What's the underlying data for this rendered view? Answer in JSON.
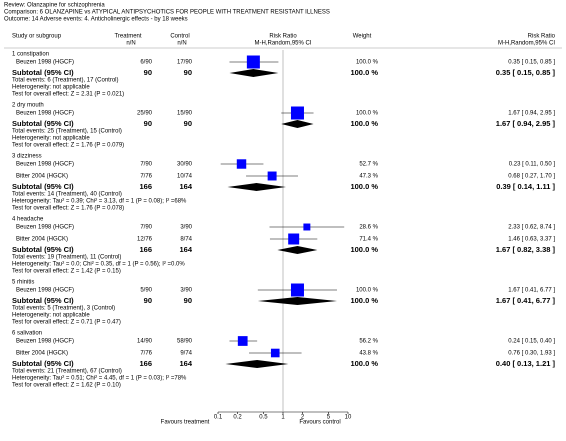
{
  "chart_data": {
    "type": "forest",
    "review": "Review:   Olanzapine for schizophrenia",
    "comparison": "Comparison:   6 OLANZAPINE vs ATYPICAL ANTIPSYCHOTICS FOR PEOPLE WITH TREATMENT RESISTANT ILLNESS",
    "outcome": "Outcome:   14 Adverse events: 4. Anticholinergic effects - by 18 weeks",
    "columns": {
      "study": "Study or subgroup",
      "treatment": "Treatment",
      "treatment_sub": "n/N",
      "control": "Control",
      "control_sub": "n/N",
      "plot": "Risk Ratio",
      "plot_sub": "M-H,Random,95% CI",
      "weight": "Weight",
      "effect": "Risk Ratio",
      "effect_sub": "M-H,Random,95% CI"
    },
    "log_scale": true,
    "xlim": [
      0.1,
      10
    ],
    "xticks": [
      0.1,
      0.2,
      0.5,
      1,
      2,
      5,
      10
    ],
    "favours_left": "Favours treatment",
    "favours_right": "Favours control",
    "square_color": "#0000ff",
    "diamond_color": "#000000",
    "groups": [
      {
        "name": "1 constipation",
        "studies": [
          {
            "name": "Beuzen 1998 (HGCF)",
            "treatment": "6/90",
            "control": "17/90",
            "weight": 100.0,
            "weight_label": "100.0 %",
            "rr": [
              0.35,
              0.15,
              0.85
            ],
            "rr_label": "0.35 [ 0.15, 0.85 ]"
          }
        ],
        "subtotal": {
          "label": "Subtotal (95% CI)",
          "treatment": 90,
          "control": 90,
          "weight_label": "100.0 %",
          "rr": [
            0.35,
            0.15,
            0.85
          ],
          "rr_label": "0.35 [ 0.15, 0.85 ]"
        },
        "notes": [
          "Total events: 6 (Treatment), 17 (Control)",
          "Heterogeneity: not applicable",
          "Test for overall effect: Z = 2.31 (P = 0.021)"
        ]
      },
      {
        "name": "2 dry mouth",
        "studies": [
          {
            "name": "Beuzen 1998 (HGCF)",
            "treatment": "25/90",
            "control": "15/90",
            "weight": 100.0,
            "weight_label": "100.0 %",
            "rr": [
              1.67,
              0.94,
              2.95
            ],
            "rr_label": "1.67 [ 0.94, 2.95 ]"
          }
        ],
        "subtotal": {
          "label": "Subtotal (95% CI)",
          "treatment": 90,
          "control": 90,
          "weight_label": "100.0 %",
          "rr": [
            1.67,
            0.94,
            2.95
          ],
          "rr_label": "1.67 [ 0.94, 2.95 ]"
        },
        "notes": [
          "Total events: 25 (Treatment), 15 (Control)",
          "Heterogeneity: not applicable",
          "Test for overall effect: Z = 1.76 (P = 0.079)"
        ]
      },
      {
        "name": "3 dizziness",
        "studies": [
          {
            "name": "Beuzen 1998 (HGCF)",
            "treatment": "7/90",
            "control": "30/90",
            "weight": 52.7,
            "weight_label": "52.7 %",
            "rr": [
              0.23,
              0.11,
              0.5
            ],
            "rr_label": "0.23 [ 0.11, 0.50 ]"
          },
          {
            "name": "Bitter 2004 (HGCK)",
            "treatment": "7/76",
            "control": "10/74",
            "weight": 47.3,
            "weight_label": "47.3 %",
            "rr": [
              0.68,
              0.27,
              1.7
            ],
            "rr_label": "0.68 [ 0.27, 1.70 ]"
          }
        ],
        "subtotal": {
          "label": "Subtotal (95% CI)",
          "treatment": 166,
          "control": 164,
          "weight_label": "100.0 %",
          "rr": [
            0.39,
            0.14,
            1.11
          ],
          "rr_label": "0.39 [ 0.14, 1.11 ]"
        },
        "notes": [
          "Total events: 14 (Treatment), 40 (Control)",
          "Heterogeneity: Tau² = 0.39; Chi² = 3.13, df = 1 (P = 0.08); I² =68%",
          "Test for overall effect: Z = 1.76 (P = 0.078)"
        ]
      },
      {
        "name": "4 headache",
        "studies": [
          {
            "name": "Beuzen 1998 (HGCF)",
            "treatment": "7/90",
            "control": "3/90",
            "weight": 28.6,
            "weight_label": "28.6 %",
            "rr": [
              2.33,
              0.62,
              8.74
            ],
            "rr_label": "2.33 [ 0.62, 8.74 ]"
          },
          {
            "name": "Bitter 2004 (HGCK)",
            "treatment": "12/76",
            "control": "8/74",
            "weight": 71.4,
            "weight_label": "71.4 %",
            "rr": [
              1.46,
              0.63,
              3.37
            ],
            "rr_label": "1.46 [ 0.63, 3.37 ]"
          }
        ],
        "subtotal": {
          "label": "Subtotal (95% CI)",
          "treatment": 166,
          "control": 164,
          "weight_label": "100.0 %",
          "rr": [
            1.67,
            0.82,
            3.38
          ],
          "rr_label": "1.67 [ 0.82, 3.38 ]"
        },
        "notes": [
          "Total events: 19 (Treatment), 11 (Control)",
          "Heterogeneity: Tau² = 0.0; Chi² = 0.35, df = 1 (P = 0.56); I² =0.0%",
          "Test for overall effect: Z = 1.42 (P = 0.15)"
        ]
      },
      {
        "name": "5 rhinitis",
        "studies": [
          {
            "name": "Beuzen 1998 (HGCF)",
            "treatment": "5/90",
            "control": "3/90",
            "weight": 100.0,
            "weight_label": "100.0 %",
            "rr": [
              1.67,
              0.41,
              6.77
            ],
            "rr_label": "1.67 [ 0.41, 6.77 ]"
          }
        ],
        "subtotal": {
          "label": "Subtotal (95% CI)",
          "treatment": 90,
          "control": 90,
          "weight_label": "100.0 %",
          "rr": [
            1.67,
            0.41,
            6.77
          ],
          "rr_label": "1.67 [ 0.41, 6.77 ]"
        },
        "notes": [
          "Total events: 5 (Treatment), 3 (Control)",
          "Heterogeneity: not applicable",
          "Test for overall effect: Z = 0.71 (P = 0.47)"
        ]
      },
      {
        "name": "6 salivation",
        "studies": [
          {
            "name": "Beuzen 1998 (HGCF)",
            "treatment": "14/90",
            "control": "58/90",
            "weight": 56.2,
            "weight_label": "56.2 %",
            "rr": [
              0.24,
              0.15,
              0.4
            ],
            "rr_label": "0.24 [ 0.15, 0.40 ]"
          },
          {
            "name": "Bitter 2004 (HGCK)",
            "treatment": "7/76",
            "control": "9/74",
            "weight": 43.8,
            "weight_label": "43.8 %",
            "rr": [
              0.76,
              0.3,
              1.93
            ],
            "rr_label": "0.76 [ 0.30, 1.93 ]"
          }
        ],
        "subtotal": {
          "label": "Subtotal (95% CI)",
          "treatment": 166,
          "control": 164,
          "weight_label": "100.0 %",
          "rr": [
            0.4,
            0.13,
            1.21
          ],
          "rr_label": "0.40 [ 0.13, 1.21 ]"
        },
        "notes": [
          "Total events: 21 (Treatment), 67 (Control)",
          "Heterogeneity: Tau² = 0.51; Chi² = 4.45, df = 1 (P = 0.03); I² =78%",
          "Test for overall effect: Z = 1.62 (P = 0.10)"
        ]
      }
    ]
  }
}
